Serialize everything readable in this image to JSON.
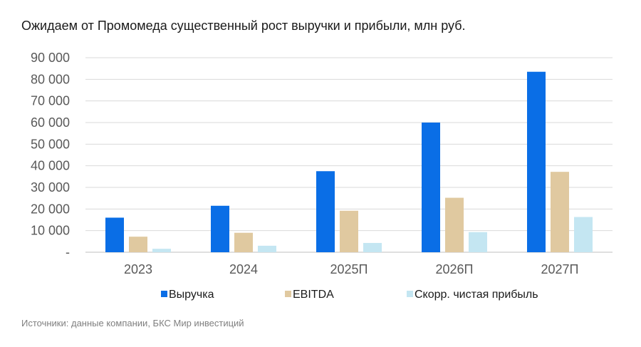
{
  "chart_data": {
    "type": "bar",
    "title": "Ожидаем от Промомеда существенный рост выручки и прибыли, млн руб.",
    "categories": [
      "2023",
      "2024",
      "2025П",
      "2026П",
      "2027П"
    ],
    "series": [
      {
        "name": "Выручка",
        "color": "#0a6ee6",
        "values": [
          16000,
          21500,
          37500,
          60000,
          83500
        ]
      },
      {
        "name": "EBITDA",
        "color": "#e0c9a0",
        "values": [
          7200,
          9000,
          19200,
          25200,
          37200
        ]
      },
      {
        "name": "Скорр. чистая прибыль",
        "color": "#c4e6f2",
        "values": [
          1600,
          3000,
          4300,
          9300,
          16300
        ]
      }
    ],
    "ylim": [
      0,
      90000
    ],
    "yticks": [
      0,
      10000,
      20000,
      30000,
      40000,
      50000,
      60000,
      70000,
      80000,
      90000
    ],
    "ytick_labels": [
      "-",
      "10 000",
      "20 000",
      "30 000",
      "40 000",
      "50 000",
      "60 000",
      "70 000",
      "80 000",
      "90 000"
    ],
    "grid": true,
    "legend_position": "bottom",
    "xlabel": "",
    "ylabel": ""
  },
  "footer": {
    "source": "Источники: данные компании, БКС Мир инвестиций"
  }
}
